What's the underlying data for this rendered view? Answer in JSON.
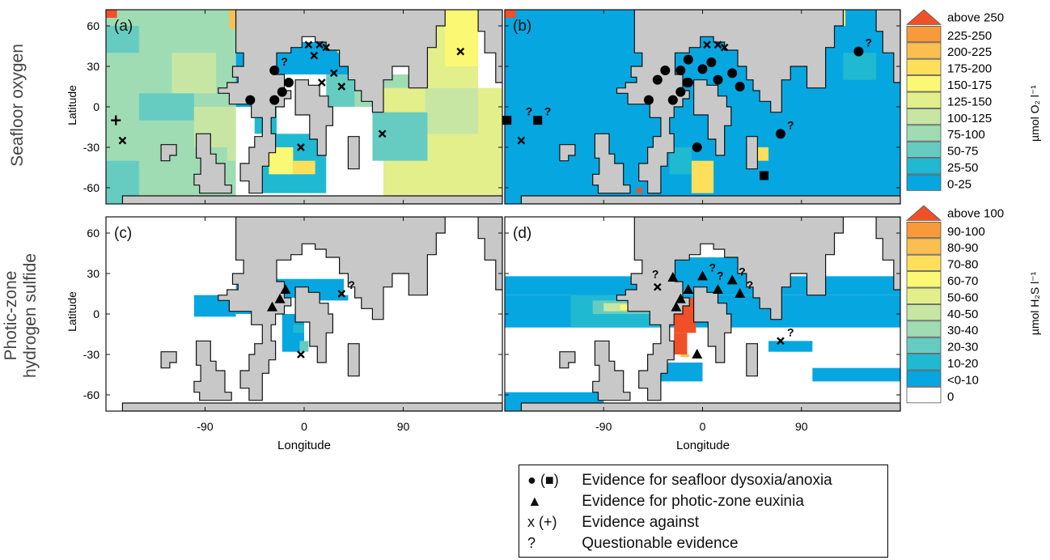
{
  "chart_data": [
    {
      "type": "heatmap",
      "panel_label": "(a)",
      "row_label": "Seafloor oxygen",
      "ylabel": "Latitude",
      "yticks": [
        "60",
        "30",
        "0",
        "-30",
        "-60"
      ],
      "colorbar": "oxygen",
      "markers": [
        {
          "type": "circle",
          "lon": -49,
          "lat": 5
        },
        {
          "type": "circle",
          "lon": -27,
          "lat": 27,
          "q": true
        },
        {
          "type": "circle",
          "lon": -27,
          "lat": 5
        },
        {
          "type": "circle",
          "lon": -20,
          "lat": 11
        },
        {
          "type": "circle",
          "lon": -14,
          "lat": 18
        },
        {
          "type": "x",
          "lon": 4,
          "lat": 46
        },
        {
          "type": "x",
          "lon": 14,
          "lat": 46
        },
        {
          "type": "x",
          "lon": 20,
          "lat": 44
        },
        {
          "type": "x",
          "lon": 9,
          "lat": 38
        },
        {
          "type": "x",
          "lon": 27,
          "lat": 25
        },
        {
          "type": "x",
          "lon": 16,
          "lat": 18
        },
        {
          "type": "x",
          "lon": 34,
          "lat": 15
        },
        {
          "type": "x",
          "lon": -3,
          "lat": -30
        },
        {
          "type": "x",
          "lon": 71,
          "lat": -20
        },
        {
          "type": "x",
          "lon": -165,
          "lat": -25
        },
        {
          "type": "x",
          "lon": 142,
          "lat": 41
        },
        {
          "type": "plus",
          "lon": -171,
          "lat": -10
        }
      ]
    },
    {
      "type": "heatmap",
      "panel_label": "(b)",
      "colorbar": "oxygen",
      "markers": [
        {
          "type": "circle",
          "lon": -49,
          "lat": 5
        },
        {
          "type": "circle",
          "lon": -41,
          "lat": 20
        },
        {
          "type": "circle",
          "lon": -34,
          "lat": 27
        },
        {
          "type": "circle",
          "lon": -27,
          "lat": 5
        },
        {
          "type": "circle",
          "lon": -20,
          "lat": 11
        },
        {
          "type": "circle",
          "lon": -14,
          "lat": 18
        },
        {
          "type": "circle",
          "lon": -20,
          "lat": 27
        },
        {
          "type": "circle",
          "lon": -13,
          "lat": 35
        },
        {
          "type": "circle",
          "lon": -13,
          "lat": 18
        },
        {
          "type": "circle",
          "lon": 0,
          "lat": 28
        },
        {
          "type": "circle",
          "lon": 8,
          "lat": 33
        },
        {
          "type": "circle",
          "lon": 14,
          "lat": 20
        },
        {
          "type": "circle",
          "lon": 27,
          "lat": 25
        },
        {
          "type": "circle",
          "lon": 34,
          "lat": 15
        },
        {
          "type": "circle",
          "lon": -5,
          "lat": -30
        },
        {
          "type": "circle",
          "lon": 71,
          "lat": -20,
          "q": true
        },
        {
          "type": "circle",
          "lon": 142,
          "lat": 41,
          "q": true
        },
        {
          "type": "square",
          "lon": -178,
          "lat": -10
        },
        {
          "type": "square",
          "lon": -150,
          "lat": -10,
          "q": true
        },
        {
          "type": "square",
          "lon": 56,
          "lat": -51
        },
        {
          "type": "x",
          "lon": 4,
          "lat": 46
        },
        {
          "type": "x",
          "lon": 14,
          "lat": 46
        },
        {
          "type": "x",
          "lon": 20,
          "lat": 44
        },
        {
          "type": "x",
          "lon": -165,
          "lat": -25
        }
      ],
      "extra_q": [
        {
          "lon": -167,
          "lat": -10
        }
      ]
    },
    {
      "type": "heatmap",
      "panel_label": "(c)",
      "row_label_1": "Photic-zone",
      "row_label_2": "hydrogen sulfide",
      "ylabel": "Latitude",
      "xlabel": "Longitude",
      "yticks": [
        "60",
        "30",
        "0",
        "-30",
        "-60"
      ],
      "xticks": [
        "-90",
        "0",
        "90"
      ],
      "colorbar": "sulfide",
      "markers": [
        {
          "type": "triangle",
          "lon": -29,
          "lat": 5
        },
        {
          "type": "triangle",
          "lon": -22,
          "lat": 11
        },
        {
          "type": "triangle",
          "lon": -17,
          "lat": 18
        },
        {
          "type": "x",
          "lon": 34,
          "lat": 15,
          "q": true
        },
        {
          "type": "x",
          "lon": -3,
          "lat": -30
        }
      ]
    },
    {
      "type": "heatmap",
      "panel_label": "(d)",
      "xlabel": "Longitude",
      "xticks": [
        "-90",
        "0",
        "90"
      ],
      "colorbar": "sulfide",
      "markers": [
        {
          "type": "triangle",
          "lon": -27,
          "lat": 27
        },
        {
          "type": "triangle",
          "lon": -20,
          "lat": 11
        },
        {
          "type": "triangle",
          "lon": -24,
          "lat": 5
        },
        {
          "type": "triangle",
          "lon": -13,
          "lat": 18
        },
        {
          "type": "triangle",
          "lon": 0,
          "lat": 28,
          "q": true
        },
        {
          "type": "triangle",
          "lon": 14,
          "lat": 18
        },
        {
          "type": "triangle",
          "lon": 27,
          "lat": 25,
          "q": true
        },
        {
          "type": "triangle",
          "lon": 34,
          "lat": 15,
          "q": true
        },
        {
          "type": "triangle",
          "lon": -5,
          "lat": -30
        },
        {
          "type": "x",
          "lon": -41,
          "lat": 20
        },
        {
          "type": "x",
          "lon": 71,
          "lat": -20,
          "q": true
        }
      ],
      "extra_q": [
        {
          "lon": -52,
          "lat": 23
        },
        {
          "lon": 7,
          "lat": 22
        }
      ]
    }
  ],
  "colorbars": {
    "oxygen": {
      "unit": "µmol O₂ l⁻¹",
      "labels": [
        "above 250",
        "225-250",
        "200-225",
        "175-200",
        "150-175",
        "125-150",
        "100-125",
        "75-100",
        "50-75",
        "25-50",
        "0-25"
      ],
      "colors": [
        "#f05028",
        "#f89a3a",
        "#fbbf50",
        "#fddf5c",
        "#fbf873",
        "#e3ef8a",
        "#c7e6a4",
        "#9fdcb3",
        "#66ccc2",
        "#20b9d2",
        "#06a7e1"
      ]
    },
    "sulfide": {
      "unit": "µmol H₂S l⁻¹",
      "labels": [
        "above 100",
        "90-100",
        "80-90",
        "70-80",
        "60-70",
        "50-60",
        "40-50",
        "30-40",
        "20-30",
        "10-20",
        "<0-10",
        "0"
      ],
      "colors": [
        "#f05028",
        "#f89a3a",
        "#fbbf50",
        "#fddf5c",
        "#fbf873",
        "#e3ef8a",
        "#c7e6a4",
        "#9fdcb3",
        "#66ccc2",
        "#20b9d2",
        "#06a7e1",
        "#ffffff"
      ]
    }
  },
  "legend": {
    "rows": [
      {
        "symbol": "● (■)",
        "text": "Evidence for seafloor dysoxia/anoxia"
      },
      {
        "symbol": "▲",
        "text": "Evidence for photic-zone euxinia"
      },
      {
        "symbol": "x (+)",
        "text": "Evidence against"
      },
      {
        "symbol": "?",
        "text": "Questionable evidence"
      }
    ]
  }
}
